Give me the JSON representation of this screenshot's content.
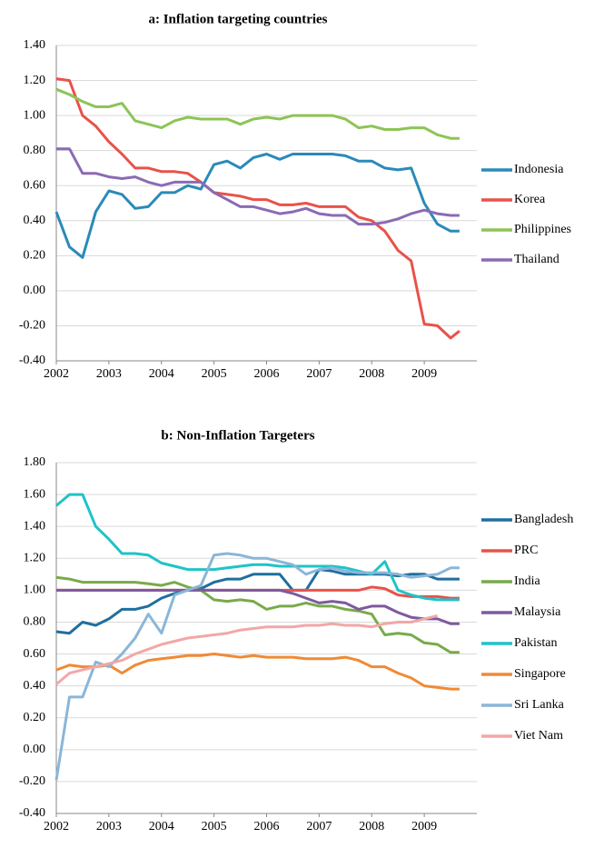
{
  "chart_data": [
    {
      "type": "line",
      "title": "a: Inflation targeting countries",
      "x": [
        2002,
        2002.25,
        2002.5,
        2002.75,
        2003,
        2003.25,
        2003.5,
        2003.75,
        2004,
        2004.25,
        2004.5,
        2004.75,
        2005,
        2005.25,
        2005.5,
        2005.75,
        2006,
        2006.25,
        2006.5,
        2006.75,
        2007,
        2007.25,
        2007.5,
        2007.75,
        2008,
        2008.25,
        2008.5,
        2008.75,
        2009,
        2009.25,
        2009.5,
        2009.67
      ],
      "series": [
        {
          "name": "Indonesia",
          "color": "#2a8ab8",
          "values": [
            0.45,
            0.25,
            0.19,
            0.45,
            0.57,
            0.55,
            0.47,
            0.48,
            0.56,
            0.56,
            0.6,
            0.58,
            0.72,
            0.74,
            0.7,
            0.76,
            0.78,
            0.75,
            0.78,
            0.78,
            0.78,
            0.78,
            0.77,
            0.74,
            0.74,
            0.7,
            0.69,
            0.7,
            0.5,
            0.38,
            0.34,
            0.34
          ]
        },
        {
          "name": "Korea",
          "color": "#e8524a",
          "values": [
            1.21,
            1.2,
            1.0,
            0.94,
            0.85,
            0.78,
            0.7,
            0.7,
            0.68,
            0.68,
            0.67,
            0.62,
            0.56,
            0.55,
            0.54,
            0.52,
            0.52,
            0.49,
            0.49,
            0.5,
            0.48,
            0.48,
            0.48,
            0.42,
            0.4,
            0.34,
            0.23,
            0.17,
            -0.19,
            -0.2,
            -0.27,
            -0.23
          ]
        },
        {
          "name": "Philippines",
          "color": "#8dc456",
          "values": [
            1.15,
            1.12,
            1.08,
            1.05,
            1.05,
            1.07,
            0.97,
            0.95,
            0.93,
            0.97,
            0.99,
            0.98,
            0.98,
            0.98,
            0.95,
            0.98,
            0.99,
            0.98,
            1.0,
            1.0,
            1.0,
            1.0,
            0.98,
            0.93,
            0.94,
            0.92,
            0.92,
            0.93,
            0.93,
            0.89,
            0.87,
            0.87
          ]
        },
        {
          "name": "Thailand",
          "color": "#8b6ab5",
          "values": [
            0.81,
            0.81,
            0.67,
            0.67,
            0.65,
            0.64,
            0.65,
            0.62,
            0.6,
            0.62,
            0.62,
            0.62,
            0.56,
            0.52,
            0.48,
            0.48,
            0.46,
            0.44,
            0.45,
            0.47,
            0.44,
            0.43,
            0.43,
            0.38,
            0.38,
            0.39,
            0.41,
            0.44,
            0.46,
            0.44,
            0.43,
            0.43
          ]
        }
      ],
      "xlim": [
        2002,
        2010
      ],
      "xticks": [
        2002,
        2003,
        2004,
        2005,
        2006,
        2007,
        2008,
        2009
      ],
      "ylim": [
        -0.4,
        1.4
      ],
      "yticks": [
        {
          "value": -0.4,
          "label": "-0.40"
        },
        {
          "value": -0.2,
          "label": "-0.20"
        },
        {
          "value": 0,
          "label": "0.00"
        },
        {
          "value": 0.2,
          "label": "0.20"
        },
        {
          "value": 0.4,
          "label": "0.40"
        },
        {
          "value": 0.6,
          "label": "0.60"
        },
        {
          "value": 0.8,
          "label": "0.80"
        },
        {
          "value": 1.0,
          "label": "1.00"
        },
        {
          "value": 1.2,
          "label": "1.20"
        },
        {
          "value": 1.4,
          "label": "1.40"
        }
      ],
      "grid": true,
      "legend": "right"
    },
    {
      "type": "line",
      "title": "b: Non-Inflation Targeters",
      "x": [
        2002,
        2002.25,
        2002.5,
        2002.75,
        2003,
        2003.25,
        2003.5,
        2003.75,
        2004,
        2004.25,
        2004.5,
        2004.75,
        2005,
        2005.25,
        2005.5,
        2005.75,
        2006,
        2006.25,
        2006.5,
        2006.75,
        2007,
        2007.25,
        2007.5,
        2007.75,
        2008,
        2008.25,
        2008.5,
        2008.75,
        2009,
        2009.25,
        2009.5,
        2009.67
      ],
      "series": [
        {
          "name": "Bangladesh",
          "color": "#1f6f9f",
          "values": [
            0.74,
            0.73,
            0.8,
            0.78,
            0.82,
            0.88,
            0.88,
            0.9,
            0.95,
            0.98,
            1.0,
            1.01,
            1.05,
            1.07,
            1.07,
            1.1,
            1.1,
            1.1,
            1.0,
            1.0,
            1.13,
            1.12,
            1.1,
            1.1,
            1.1,
            1.1,
            1.09,
            1.1,
            1.1,
            1.07,
            1.07,
            1.07
          ]
        },
        {
          "name": "PRC",
          "color": "#e8524a",
          "values": [
            1.0,
            1.0,
            1.0,
            1.0,
            1.0,
            1.0,
            1.0,
            1.0,
            1.0,
            1.0,
            1.0,
            1.0,
            1.0,
            1.0,
            1.0,
            1.0,
            1.0,
            1.0,
            1.0,
            1.0,
            1.0,
            1.0,
            1.0,
            1.0,
            1.02,
            1.01,
            0.97,
            0.96,
            0.96,
            0.96,
            0.95,
            0.95
          ]
        },
        {
          "name": "India",
          "color": "#78aa4a",
          "values": [
            1.08,
            1.07,
            1.05,
            1.05,
            1.05,
            1.05,
            1.05,
            1.04,
            1.03,
            1.05,
            1.02,
            1.0,
            0.94,
            0.93,
            0.94,
            0.93,
            0.88,
            0.9,
            0.9,
            0.92,
            0.9,
            0.9,
            0.88,
            0.87,
            0.85,
            0.72,
            0.73,
            0.72,
            0.67,
            0.66,
            0.61,
            0.61
          ]
        },
        {
          "name": "Malaysia",
          "color": "#7d5a9e",
          "values": [
            1.0,
            1.0,
            1.0,
            1.0,
            1.0,
            1.0,
            1.0,
            1.0,
            1.0,
            1.0,
            1.0,
            1.0,
            1.0,
            1.0,
            1.0,
            1.0,
            1.0,
            1.0,
            0.98,
            0.95,
            0.92,
            0.93,
            0.92,
            0.88,
            0.9,
            0.9,
            0.86,
            0.83,
            0.82,
            0.82,
            0.79,
            0.79
          ]
        },
        {
          "name": "Pakistan",
          "color": "#1fc3c8",
          "values": [
            1.53,
            1.6,
            1.6,
            1.4,
            1.32,
            1.23,
            1.23,
            1.22,
            1.17,
            1.15,
            1.13,
            1.13,
            1.13,
            1.14,
            1.15,
            1.16,
            1.16,
            1.15,
            1.15,
            1.15,
            1.15,
            1.15,
            1.14,
            1.12,
            1.1,
            1.18,
            1.0,
            0.97,
            0.95,
            0.94,
            0.94,
            0.94
          ]
        },
        {
          "name": "Singapore",
          "color": "#f08a35",
          "values": [
            0.5,
            0.53,
            0.52,
            0.52,
            0.53,
            0.48,
            0.53,
            0.56,
            0.57,
            0.58,
            0.59,
            0.59,
            0.6,
            0.59,
            0.58,
            0.59,
            0.58,
            0.58,
            0.58,
            0.57,
            0.57,
            0.57,
            0.58,
            0.56,
            0.52,
            0.52,
            0.48,
            0.45,
            0.4,
            0.39,
            0.38,
            0.38
          ]
        },
        {
          "name": "Sri Lanka",
          "color": "#8ab6d8",
          "values": [
            -0.19,
            0.33,
            0.33,
            0.55,
            0.52,
            0.6,
            0.7,
            0.85,
            0.73,
            0.97,
            1.0,
            1.03,
            1.22,
            1.23,
            1.22,
            1.2,
            1.2,
            1.18,
            1.16,
            1.1,
            1.13,
            1.14,
            1.12,
            1.11,
            1.11,
            1.11,
            1.1,
            1.08,
            1.09,
            1.1,
            1.14,
            1.14
          ]
        },
        {
          "name": "Viet Nam",
          "color": "#f2a7a7",
          "values": [
            0.41,
            0.48,
            0.5,
            0.52,
            0.54,
            0.56,
            0.6,
            0.63,
            0.66,
            0.68,
            0.7,
            0.71,
            0.72,
            0.73,
            0.75,
            0.76,
            0.77,
            0.77,
            0.77,
            0.78,
            0.78,
            0.79,
            0.78,
            0.78,
            0.77,
            0.79,
            0.8,
            0.8,
            0.82,
            0.84,
            null,
            null
          ]
        }
      ],
      "xlim": [
        2002,
        2010
      ],
      "xticks": [
        2002,
        2003,
        2004,
        2005,
        2006,
        2007,
        2008,
        2009
      ],
      "ylim": [
        -0.4,
        1.8
      ],
      "yticks": [
        {
          "value": -0.4,
          "label": "-0.40"
        },
        {
          "value": -0.2,
          "label": "-0.20"
        },
        {
          "value": 0,
          "label": "0.00"
        },
        {
          "value": 0.2,
          "label": "0.20"
        },
        {
          "value": 0.4,
          "label": "0.40"
        },
        {
          "value": 0.6,
          "label": "0.60"
        },
        {
          "value": 0.8,
          "label": "0.80"
        },
        {
          "value": 1.0,
          "label": "1.00"
        },
        {
          "value": 1.2,
          "label": "1.20"
        },
        {
          "value": 1.4,
          "label": "1.40"
        },
        {
          "value": 1.6,
          "label": "1.60"
        },
        {
          "value": 1.8,
          "label": "1.80"
        }
      ],
      "grid": true,
      "legend": "right"
    }
  ]
}
